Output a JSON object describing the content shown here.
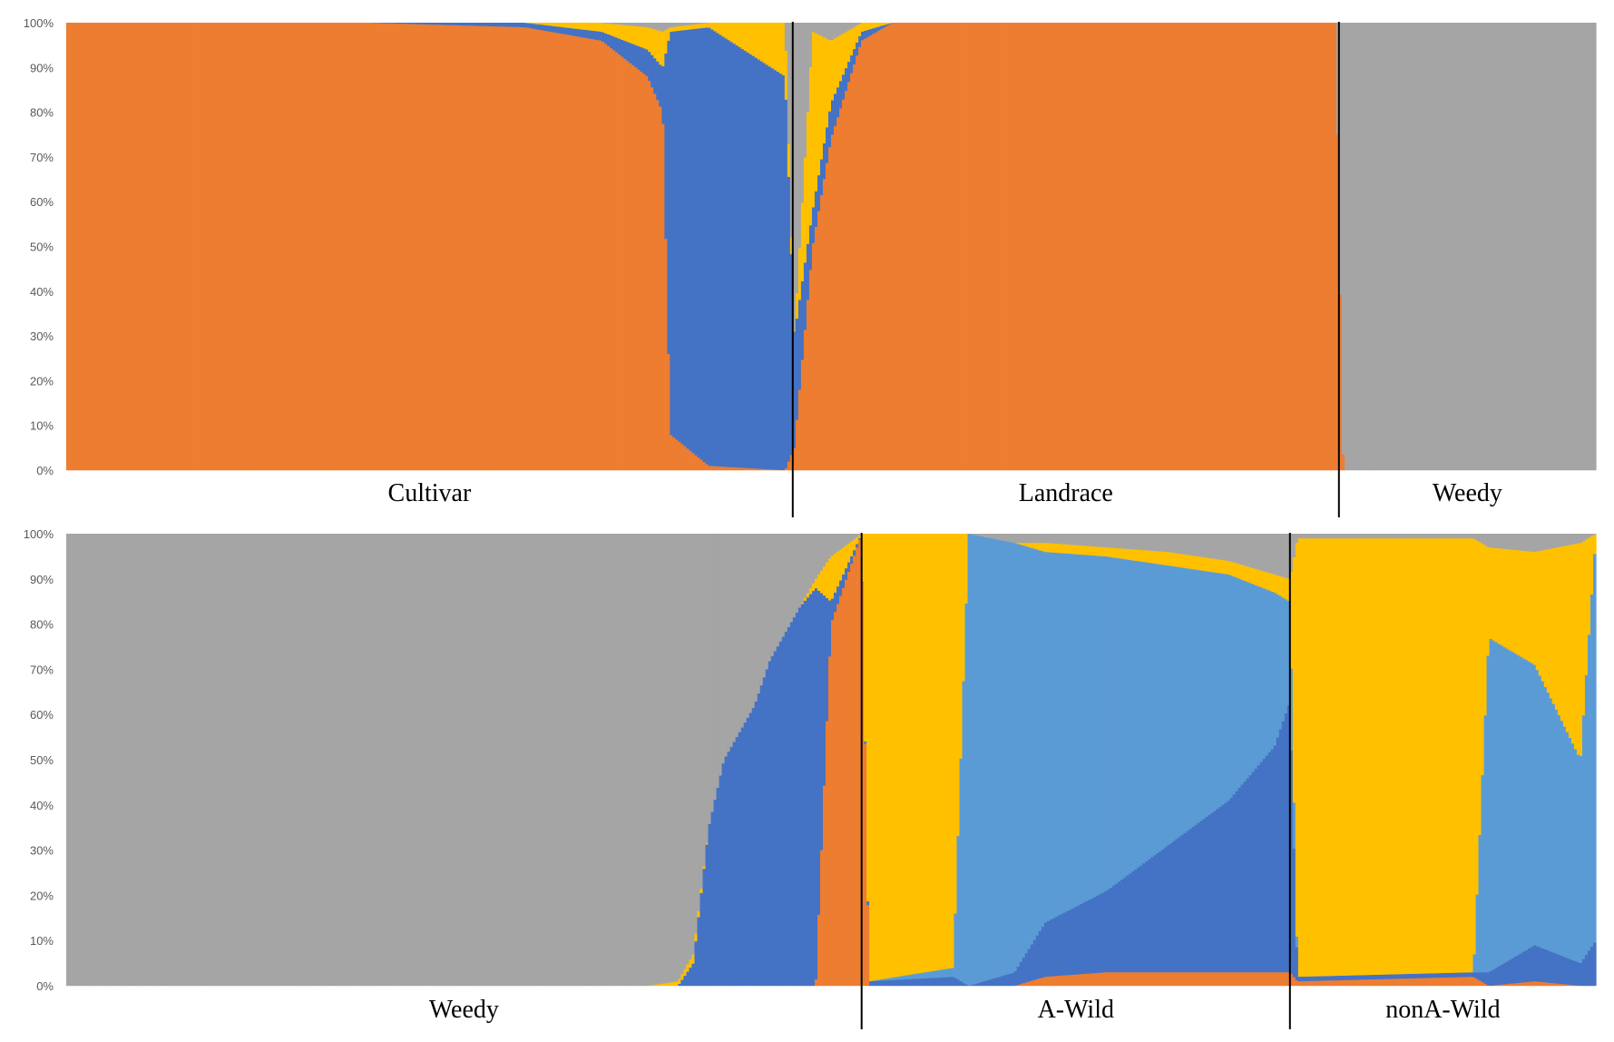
{
  "colors": {
    "orange": "#ED7D31",
    "blue": "#4472C4",
    "lightblue": "#5B9BD5",
    "yellow": "#FFC000",
    "gray": "#A5A5A5"
  },
  "chart_data": [
    {
      "type": "bar",
      "stacked": true,
      "normalized": true,
      "title": "",
      "ylim": [
        0,
        100
      ],
      "y_ticks": [
        "0%",
        "10%",
        "20%",
        "30%",
        "40%",
        "50%",
        "60%",
        "70%",
        "80%",
        "90%",
        "100%"
      ],
      "groups": [
        {
          "label": "Cultivar",
          "share": 0.475
        },
        {
          "label": "Landrace",
          "share": 0.357
        },
        {
          "label": "Weedy",
          "share": 0.168
        }
      ],
      "approx_profile": [
        {
          "x": 0.0,
          "orange": 100,
          "blue": 0,
          "lightblue": 0,
          "yellow": 0,
          "gray": 0
        },
        {
          "x": 0.2,
          "orange": 100,
          "blue": 0,
          "lightblue": 0,
          "yellow": 0,
          "gray": 0
        },
        {
          "x": 0.3,
          "orange": 99,
          "blue": 1,
          "lightblue": 0,
          "yellow": 0,
          "gray": 0
        },
        {
          "x": 0.35,
          "orange": 96,
          "blue": 2,
          "lightblue": 0,
          "yellow": 2,
          "gray": 0
        },
        {
          "x": 0.38,
          "orange": 88,
          "blue": 6,
          "lightblue": 0,
          "yellow": 5,
          "gray": 1
        },
        {
          "x": 0.39,
          "orange": 80,
          "blue": 10,
          "lightblue": 0,
          "yellow": 8,
          "gray": 2
        },
        {
          "x": 0.395,
          "orange": 8,
          "blue": 90,
          "lightblue": 0,
          "yellow": 1,
          "gray": 1
        },
        {
          "x": 0.42,
          "orange": 1,
          "blue": 98,
          "lightblue": 0,
          "yellow": 1,
          "gray": 0
        },
        {
          "x": 0.47,
          "orange": 0,
          "blue": 88,
          "lightblue": 0,
          "yellow": 12,
          "gray": 0
        },
        {
          "x": 0.476,
          "orange": 5,
          "blue": 25,
          "lightblue": 0,
          "yellow": 0,
          "gray": 70
        },
        {
          "x": 0.488,
          "orange": 50,
          "blue": 8,
          "lightblue": 0,
          "yellow": 40,
          "gray": 2
        },
        {
          "x": 0.5,
          "orange": 74,
          "blue": 8,
          "lightblue": 0,
          "yellow": 14,
          "gray": 4
        },
        {
          "x": 0.52,
          "orange": 96,
          "blue": 2,
          "lightblue": 0,
          "yellow": 2,
          "gray": 0
        },
        {
          "x": 0.54,
          "orange": 100,
          "blue": 0,
          "lightblue": 0,
          "yellow": 0,
          "gray": 0
        },
        {
          "x": 0.83,
          "orange": 100,
          "blue": 0,
          "lightblue": 0,
          "yellow": 0,
          "gray": 0
        },
        {
          "x": 0.835,
          "orange": 0,
          "blue": 0,
          "lightblue": 0,
          "yellow": 0,
          "gray": 100
        },
        {
          "x": 1.0,
          "orange": 0,
          "blue": 0,
          "lightblue": 0,
          "yellow": 0,
          "gray": 100
        }
      ]
    },
    {
      "type": "bar",
      "stacked": true,
      "normalized": true,
      "title": "",
      "ylim": [
        0,
        100
      ],
      "y_ticks": [
        "0%",
        "10%",
        "20%",
        "30%",
        "40%",
        "50%",
        "60%",
        "70%",
        "80%",
        "90%",
        "100%"
      ],
      "groups": [
        {
          "label": "Weedy",
          "share": 0.52
        },
        {
          "label": "A-Wild",
          "share": 0.28
        },
        {
          "label": "nonA-Wild",
          "share": 0.2
        }
      ],
      "approx_profile": [
        {
          "x": 0.0,
          "orange": 0,
          "blue": 0,
          "lightblue": 0,
          "yellow": 0,
          "gray": 100
        },
        {
          "x": 0.38,
          "orange": 0,
          "blue": 0,
          "lightblue": 0,
          "yellow": 0,
          "gray": 100
        },
        {
          "x": 0.4,
          "orange": 0,
          "blue": 0,
          "lightblue": 0,
          "yellow": 1,
          "gray": 99
        },
        {
          "x": 0.41,
          "orange": 0,
          "blue": 5,
          "lightblue": 0,
          "yellow": 2,
          "gray": 93
        },
        {
          "x": 0.42,
          "orange": 0,
          "blue": 35,
          "lightblue": 0,
          "yellow": 0,
          "gray": 65
        },
        {
          "x": 0.43,
          "orange": 0,
          "blue": 50,
          "lightblue": 0,
          "yellow": 0,
          "gray": 50
        },
        {
          "x": 0.45,
          "orange": 0,
          "blue": 62,
          "lightblue": 0,
          "yellow": 0,
          "gray": 38
        },
        {
          "x": 0.46,
          "orange": 0,
          "blue": 72,
          "lightblue": 0,
          "yellow": 0,
          "gray": 28
        },
        {
          "x": 0.48,
          "orange": 0,
          "blue": 84,
          "lightblue": 0,
          "yellow": 0,
          "gray": 16
        },
        {
          "x": 0.49,
          "orange": 0,
          "blue": 88,
          "lightblue": 0,
          "yellow": 2,
          "gray": 10
        },
        {
          "x": 0.5,
          "orange": 80,
          "blue": 5,
          "lightblue": 0,
          "yellow": 10,
          "gray": 5
        },
        {
          "x": 0.52,
          "orange": 100,
          "blue": 0,
          "lightblue": 0,
          "yellow": 0,
          "gray": 0
        },
        {
          "x": 0.525,
          "orange": 0,
          "blue": 1,
          "lightblue": 0,
          "yellow": 99,
          "gray": 0
        },
        {
          "x": 0.58,
          "orange": 0,
          "blue": 2,
          "lightblue": 2,
          "yellow": 96,
          "gray": 0
        },
        {
          "x": 0.59,
          "orange": 0,
          "blue": 0,
          "lightblue": 100,
          "yellow": 0,
          "gray": 0
        },
        {
          "x": 0.62,
          "orange": 0,
          "blue": 3,
          "lightblue": 95,
          "yellow": 0,
          "gray": 2
        },
        {
          "x": 0.64,
          "orange": 2,
          "blue": 12,
          "lightblue": 82,
          "yellow": 2,
          "gray": 2
        },
        {
          "x": 0.68,
          "orange": 3,
          "blue": 18,
          "lightblue": 74,
          "yellow": 2,
          "gray": 3
        },
        {
          "x": 0.72,
          "orange": 3,
          "blue": 28,
          "lightblue": 62,
          "yellow": 3,
          "gray": 4
        },
        {
          "x": 0.76,
          "orange": 3,
          "blue": 38,
          "lightblue": 50,
          "yellow": 3,
          "gray": 6
        },
        {
          "x": 0.79,
          "orange": 3,
          "blue": 50,
          "lightblue": 34,
          "yellow": 4,
          "gray": 9
        },
        {
          "x": 0.8,
          "orange": 3,
          "blue": 60,
          "lightblue": 22,
          "yellow": 5,
          "gray": 10
        },
        {
          "x": 0.805,
          "orange": 1,
          "blue": 1,
          "lightblue": 0,
          "yellow": 97,
          "gray": 1
        },
        {
          "x": 0.92,
          "orange": 2,
          "blue": 1,
          "lightblue": 0,
          "yellow": 96,
          "gray": 1
        },
        {
          "x": 0.93,
          "orange": 0,
          "blue": 3,
          "lightblue": 74,
          "yellow": 20,
          "gray": 3
        },
        {
          "x": 0.96,
          "orange": 1,
          "blue": 8,
          "lightblue": 62,
          "yellow": 25,
          "gray": 4
        },
        {
          "x": 0.99,
          "orange": 0,
          "blue": 5,
          "lightblue": 45,
          "yellow": 48,
          "gray": 2
        },
        {
          "x": 1.0,
          "orange": 0,
          "blue": 10,
          "lightblue": 90,
          "yellow": 0,
          "gray": 0
        }
      ]
    }
  ]
}
